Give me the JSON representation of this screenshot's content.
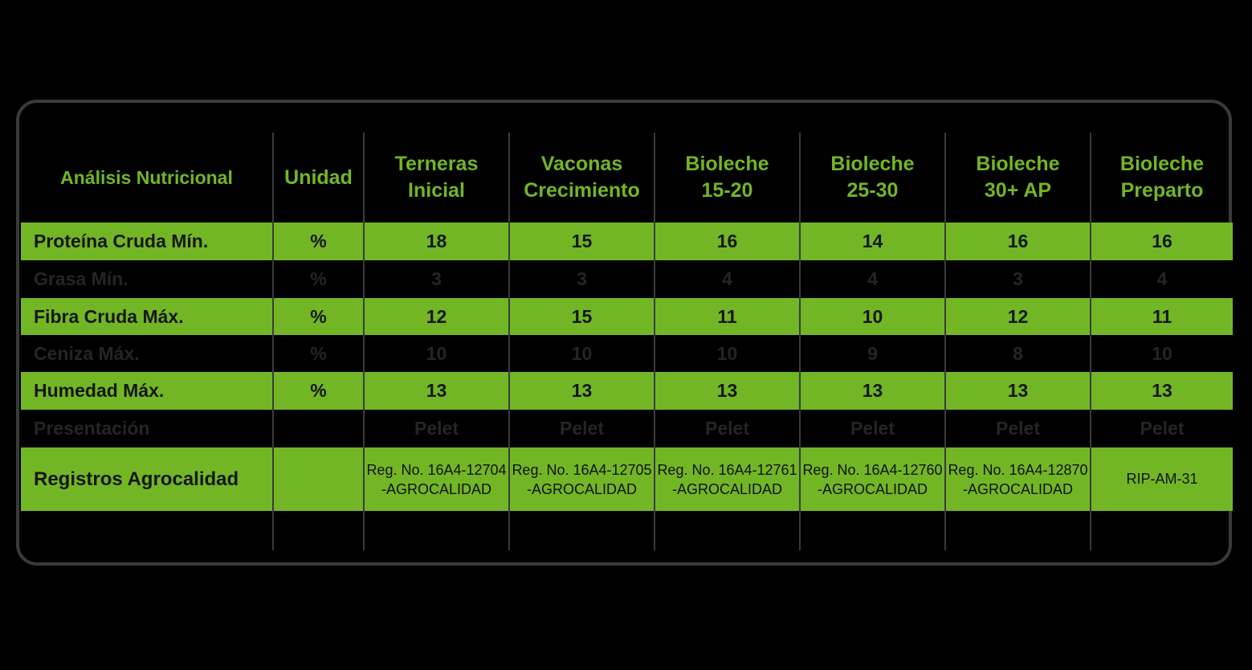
{
  "headers": {
    "analysis": "Análisis Nutricional",
    "unit": "Unidad",
    "products": [
      "Terneras\nInicial",
      "Vaconas\nCrecimiento",
      "Bioleche\n15-20",
      "Bioleche\n25-30",
      "Bioleche\n30+ AP",
      "Bioleche\nPreparto"
    ]
  },
  "rows": [
    {
      "label": "Proteína Cruda Mín.",
      "unit": "%",
      "values": [
        "18",
        "15",
        "16",
        "14",
        "16",
        "16"
      ]
    },
    {
      "label": "Grasa Mín.",
      "unit": "%",
      "values": [
        "3",
        "3",
        "4",
        "4",
        "3",
        "4"
      ]
    },
    {
      "label": "Fibra Cruda Máx.",
      "unit": "%",
      "values": [
        "12",
        "15",
        "11",
        "10",
        "12",
        "11"
      ]
    },
    {
      "label": "Ceniza Máx.",
      "unit": "%",
      "values": [
        "10",
        "10",
        "10",
        "9",
        "8",
        "10"
      ]
    },
    {
      "label": "Humedad Máx.",
      "unit": "%",
      "values": [
        "13",
        "13",
        "13",
        "13",
        "13",
        "13"
      ]
    },
    {
      "label": "Presentación",
      "unit": "",
      "values": [
        "Pelet",
        "Pelet",
        "Pelet",
        "Pelet",
        "Pelet",
        "Pelet"
      ]
    }
  ],
  "registros": {
    "label": "Registros Agrocalidad",
    "values": [
      "Reg. No. 16A4-12704\n-AGROCALIDAD",
      "Reg. No. 16A4-12705\n-AGROCALIDAD",
      "Reg. No. 16A4-12761\n-AGROCALIDAD",
      "Reg. No. 16A4-12760\n-AGROCALIDAD",
      "Reg. No. 16A4-12870\n-AGROCALIDAD",
      "RIP-AM-31"
    ]
  },
  "colors": {
    "accent_green": "#72b626",
    "background": "#000000",
    "frame_border": "#3a3a3a",
    "dark_row_text": "#252525"
  }
}
